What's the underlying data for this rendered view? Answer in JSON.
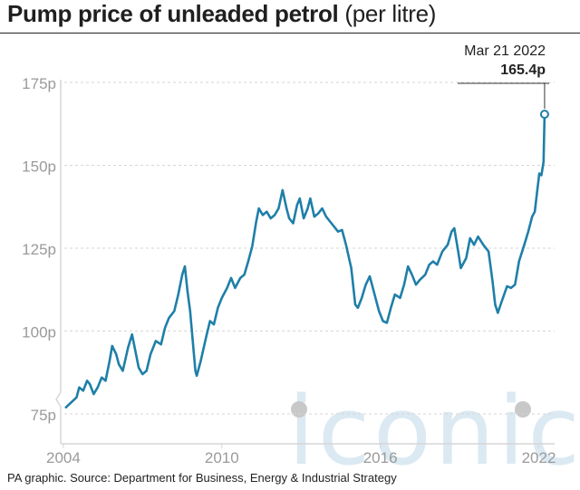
{
  "header": {
    "title_bold": "Pump price of unleaded petrol",
    "title_rest": "(per litre)"
  },
  "source": "PA graphic. Source: Department for Business, Energy & Industrial Strategy",
  "watermark": {
    "text": "iconic",
    "color": "#dbe9f2"
  },
  "colors": {
    "line": "#1f7fa8",
    "axis_text": "#9a9a9a",
    "grid": "#d6d6d6"
  },
  "chart_data": {
    "type": "line",
    "title": "Pump price of unleaded petrol (per litre)",
    "xlabel": "",
    "ylabel": "",
    "ylim": [
      72,
      178
    ],
    "xlim": [
      2003.9,
      2022.6
    ],
    "y_ticks": [
      {
        "value": 75,
        "label": "75p"
      },
      {
        "value": 100,
        "label": "100p"
      },
      {
        "value": 125,
        "label": "125p"
      },
      {
        "value": 150,
        "label": "150p"
      },
      {
        "value": 175,
        "label": "175p"
      }
    ],
    "x_ticks": [
      {
        "value": 2004,
        "label": "2004"
      },
      {
        "value": 2010,
        "label": "2010"
      },
      {
        "value": 2016,
        "label": "2016"
      },
      {
        "value": 2022,
        "label": "2022"
      }
    ],
    "grid": true,
    "axis_break": true,
    "annotation": {
      "date": "Mar 21 2022",
      "value": 165.4,
      "label": "165.4p",
      "x": 2022.22
    },
    "series": [
      {
        "points": [
          [
            2004.1,
            77
          ],
          [
            2004.3,
            78.5
          ],
          [
            2004.5,
            80
          ],
          [
            2004.6,
            83
          ],
          [
            2004.75,
            82
          ],
          [
            2004.9,
            85
          ],
          [
            2005.0,
            84
          ],
          [
            2005.15,
            81
          ],
          [
            2005.3,
            83
          ],
          [
            2005.45,
            86
          ],
          [
            2005.6,
            85
          ],
          [
            2005.75,
            91
          ],
          [
            2005.85,
            95.5
          ],
          [
            2006.0,
            93
          ],
          [
            2006.1,
            90
          ],
          [
            2006.25,
            88
          ],
          [
            2006.45,
            95
          ],
          [
            2006.6,
            99
          ],
          [
            2006.75,
            93
          ],
          [
            2006.85,
            89
          ],
          [
            2007.0,
            87
          ],
          [
            2007.15,
            88
          ],
          [
            2007.3,
            93
          ],
          [
            2007.5,
            97
          ],
          [
            2007.7,
            96
          ],
          [
            2007.85,
            101
          ],
          [
            2008.0,
            104
          ],
          [
            2008.2,
            106
          ],
          [
            2008.35,
            111
          ],
          [
            2008.5,
            117
          ],
          [
            2008.6,
            119.5
          ],
          [
            2008.7,
            112
          ],
          [
            2008.8,
            106
          ],
          [
            2008.9,
            97
          ],
          [
            2009.0,
            88
          ],
          [
            2009.05,
            86.5
          ],
          [
            2009.2,
            91
          ],
          [
            2009.4,
            98
          ],
          [
            2009.55,
            103
          ],
          [
            2009.7,
            102
          ],
          [
            2009.85,
            107
          ],
          [
            2010.0,
            110
          ],
          [
            2010.2,
            113
          ],
          [
            2010.35,
            116
          ],
          [
            2010.5,
            113
          ],
          [
            2010.7,
            116
          ],
          [
            2010.85,
            117
          ],
          [
            2011.0,
            121
          ],
          [
            2011.15,
            125.5
          ],
          [
            2011.3,
            133
          ],
          [
            2011.4,
            137
          ],
          [
            2011.55,
            135
          ],
          [
            2011.7,
            136
          ],
          [
            2011.85,
            134
          ],
          [
            2012.0,
            135
          ],
          [
            2012.15,
            137
          ],
          [
            2012.3,
            142.5
          ],
          [
            2012.45,
            137
          ],
          [
            2012.55,
            134
          ],
          [
            2012.7,
            132.5
          ],
          [
            2012.85,
            138
          ],
          [
            2012.95,
            140
          ],
          [
            2013.1,
            134
          ],
          [
            2013.25,
            137
          ],
          [
            2013.35,
            140
          ],
          [
            2013.5,
            134.5
          ],
          [
            2013.65,
            135.5
          ],
          [
            2013.8,
            137
          ],
          [
            2013.95,
            134.5
          ],
          [
            2014.15,
            132.5
          ],
          [
            2014.4,
            130
          ],
          [
            2014.55,
            130.5
          ],
          [
            2014.7,
            126
          ],
          [
            2014.9,
            119
          ],
          [
            2015.05,
            108
          ],
          [
            2015.15,
            107
          ],
          [
            2015.3,
            110
          ],
          [
            2015.45,
            114
          ],
          [
            2015.6,
            116.5
          ],
          [
            2015.75,
            112
          ],
          [
            2015.95,
            106
          ],
          [
            2016.1,
            103
          ],
          [
            2016.25,
            102.5
          ],
          [
            2016.4,
            107
          ],
          [
            2016.55,
            111
          ],
          [
            2016.75,
            110
          ],
          [
            2016.9,
            114
          ],
          [
            2017.05,
            119.5
          ],
          [
            2017.2,
            117
          ],
          [
            2017.35,
            114
          ],
          [
            2017.5,
            115.5
          ],
          [
            2017.7,
            117
          ],
          [
            2017.85,
            120
          ],
          [
            2018.0,
            121
          ],
          [
            2018.15,
            120
          ],
          [
            2018.35,
            124
          ],
          [
            2018.55,
            126
          ],
          [
            2018.7,
            130
          ],
          [
            2018.8,
            131
          ],
          [
            2018.95,
            124
          ],
          [
            2019.05,
            119
          ],
          [
            2019.25,
            122
          ],
          [
            2019.4,
            128
          ],
          [
            2019.55,
            126
          ],
          [
            2019.7,
            128.5
          ],
          [
            2019.9,
            126
          ],
          [
            2020.1,
            124
          ],
          [
            2020.25,
            115
          ],
          [
            2020.35,
            108
          ],
          [
            2020.45,
            105.5
          ],
          [
            2020.6,
            109
          ],
          [
            2020.8,
            113.5
          ],
          [
            2020.95,
            113
          ],
          [
            2021.1,
            114
          ],
          [
            2021.25,
            121
          ],
          [
            2021.45,
            126
          ],
          [
            2021.6,
            130
          ],
          [
            2021.75,
            134.5
          ],
          [
            2021.85,
            136
          ],
          [
            2021.95,
            143
          ],
          [
            2022.02,
            147.5
          ],
          [
            2022.1,
            147
          ],
          [
            2022.18,
            151
          ],
          [
            2022.22,
            165.4
          ]
        ]
      }
    ]
  }
}
